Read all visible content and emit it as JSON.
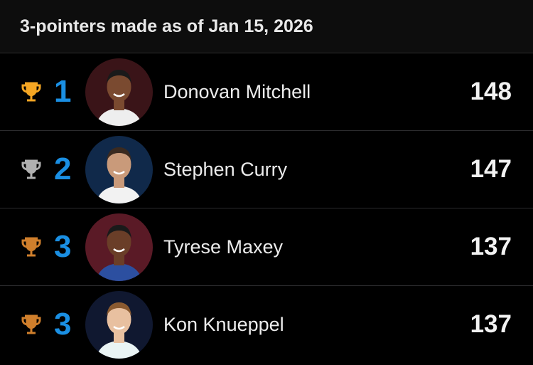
{
  "header": {
    "title": "3-pointers made as of Jan 15, 2026"
  },
  "colors": {
    "rank": "#1a8fe3",
    "gold": "#f5a623",
    "silver": "#b0b0b0",
    "bronze": "#d07f2c"
  },
  "leaders": [
    {
      "rank": "1",
      "name": "Donovan Mitchell",
      "value": "148",
      "trophy": "gold-trophy-icon",
      "bg": "#3a1418",
      "jersey": "#eeeeee"
    },
    {
      "rank": "2",
      "name": "Stephen Curry",
      "value": "147",
      "trophy": "silver-trophy-icon",
      "bg": "#10294a",
      "jersey": "#f2f2f2"
    },
    {
      "rank": "3",
      "name": "Tyrese Maxey",
      "value": "137",
      "trophy": "bronze-trophy-icon",
      "bg": "#5a1a26",
      "jersey": "#2c4fa0"
    },
    {
      "rank": "3",
      "name": "Kon Knueppel",
      "value": "137",
      "trophy": "bronze-trophy-icon",
      "bg": "#101830",
      "jersey": "#eaf4f4"
    }
  ]
}
